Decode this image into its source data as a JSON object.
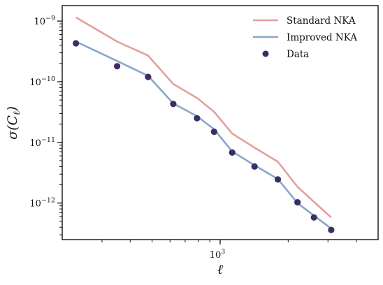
{
  "chart_data": {
    "type": "line",
    "xscale": "log",
    "yscale": "log",
    "xlim": [
      200,
      5000
    ],
    "ylim": [
      2.5e-13,
      1.8e-09
    ],
    "xlabel": "ℓ",
    "ylabel": "σ(C",
    "ylabel_sub": "ℓ",
    "ylabel_close": ")",
    "x_tick_labels": [
      {
        "value": 1000,
        "base": "10",
        "exp": "3"
      }
    ],
    "x_minor_ticks": [
      300,
      400,
      500,
      600,
      700,
      800,
      900,
      2000,
      3000,
      4000
    ],
    "y_tick_labels": [
      {
        "value": 1e-09,
        "base": "10",
        "exp": "−9"
      },
      {
        "value": 1e-10,
        "base": "10",
        "exp": "−10"
      },
      {
        "value": 1e-11,
        "base": "10",
        "exp": "−11"
      },
      {
        "value": 1e-12,
        "base": "10",
        "exp": "−12"
      }
    ],
    "grid": false,
    "legend_position": "top-right",
    "series": [
      {
        "name": "Standard NKA",
        "kind": "line",
        "color": "#e3a09c",
        "x": [
          230,
          350,
          480,
          620,
          790,
          940,
          1130,
          1420,
          1800,
          2200,
          2600,
          3100
        ],
        "y": [
          1.15e-09,
          4.6e-10,
          2.7e-10,
          9.2e-11,
          5.4e-11,
          3.2e-11,
          1.4e-11,
          8.2e-12,
          4.8e-12,
          1.85e-12,
          1.05e-12,
          5.8e-13
        ]
      },
      {
        "name": "Improved NKA",
        "kind": "line",
        "color": "#8aa6c9",
        "x": [
          230,
          350,
          480,
          620,
          790,
          940,
          1130,
          1420,
          1800,
          2200,
          2600,
          3100
        ],
        "y": [
          4.6e-10,
          2.2e-10,
          1.25e-10,
          4.4e-11,
          2.7e-11,
          1.65e-11,
          7.1e-12,
          4.2e-12,
          2.5e-12,
          1e-12,
          6.2e-13,
          3.8e-13
        ]
      },
      {
        "name": "Data",
        "kind": "scatter",
        "color": "#3b2d66",
        "x": [
          230,
          350,
          480,
          620,
          790,
          940,
          1130,
          1420,
          1800,
          2200,
          2600,
          3100
        ],
        "y": [
          4.3e-10,
          1.8e-10,
          1.2e-10,
          4.3e-11,
          2.5e-11,
          1.5e-11,
          6.8e-12,
          4e-12,
          2.45e-12,
          1.03e-12,
          5.8e-13,
          3.6e-13
        ]
      }
    ]
  }
}
